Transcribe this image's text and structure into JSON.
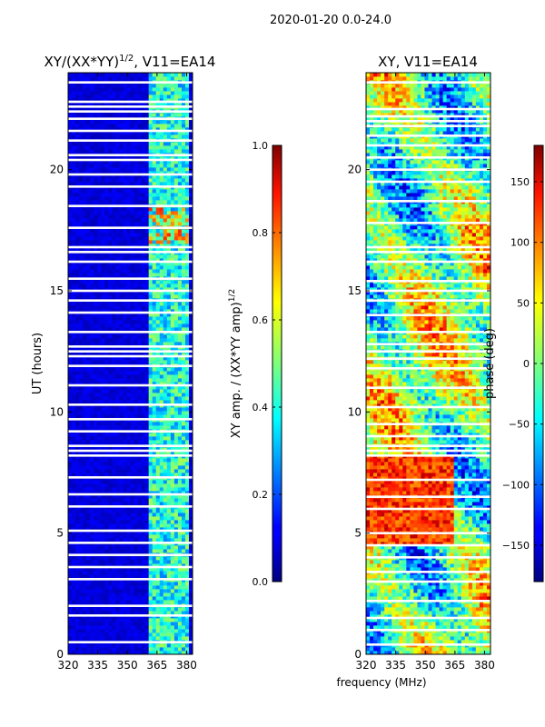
{
  "suptitle": "2020-01-20 0.0-24.0",
  "chart_data": [
    {
      "type": "heatmap",
      "title_main": "XY/(XX*YY)",
      "title_sup": "1/2",
      "title_rest": ", V11=EA14",
      "ylabel": "UT (hours)",
      "xlabel": "",
      "xlim": [
        320,
        383
      ],
      "ylim": [
        0,
        24
      ],
      "xticks": [
        320,
        335,
        350,
        365,
        380
      ],
      "yticks": [
        0,
        5,
        10,
        15,
        20
      ],
      "colorbar": {
        "label_main": "XY amp. / (XX*YY amp)",
        "label_sup": "1/2",
        "range": [
          0.0,
          1.0
        ],
        "ticks": [
          "0.0",
          "0.2",
          "0.4",
          "0.6",
          "0.8",
          "1.0"
        ],
        "tick_values": [
          0.0,
          0.2,
          0.4,
          0.6,
          0.8,
          1.0
        ],
        "colormap": "jet"
      },
      "bright_band_mhz": [
        361,
        382
      ],
      "flagged_hours": [
        0.5,
        1.6,
        2.0,
        3.1,
        3.6,
        4.1,
        4.6,
        5.1,
        6.1,
        6.6,
        7.3,
        8.2,
        8.4,
        8.6,
        9.2,
        9.7,
        10.3,
        11.1,
        11.9,
        12.3,
        12.5,
        12.7,
        13.3,
        14.1,
        14.6,
        15.0,
        15.5,
        16.2,
        16.6,
        16.8,
        17.6,
        18.5,
        19.3,
        19.8,
        20.4,
        20.6,
        21.2,
        21.6,
        22.1,
        22.4,
        22.6,
        22.8,
        23.6
      ]
    },
    {
      "type": "heatmap",
      "title": "XY, V11=EA14",
      "xlabel": "frequency (MHz)",
      "xlim": [
        320,
        383
      ],
      "ylim": [
        0,
        24
      ],
      "xticks": [
        320,
        335,
        350,
        365,
        380
      ],
      "yticks": [
        0,
        5,
        10,
        15,
        20
      ],
      "colorbar": {
        "label": "phase (deg)",
        "range": [
          -180,
          180
        ],
        "ticks": [
          "−150",
          "−100",
          "−50",
          "0",
          "50",
          "100",
          "150"
        ],
        "tick_values": [
          -150,
          -100,
          -50,
          0,
          50,
          100,
          150
        ],
        "colormap": "jet"
      },
      "flagged_hours": [
        0.4,
        1.0,
        1.5,
        2.2,
        3.0,
        3.4,
        4.0,
        4.5,
        5.0,
        6.0,
        6.5,
        7.2,
        8.2,
        8.4,
        8.6,
        9.0,
        9.5,
        10.2,
        11.0,
        11.8,
        12.2,
        12.5,
        12.8,
        13.3,
        14.0,
        14.6,
        15.0,
        15.4,
        16.2,
        16.6,
        16.8,
        17.8,
        18.7,
        19.5,
        20.0,
        20.5,
        21.0,
        21.4,
        21.8,
        22.0,
        22.2,
        22.5,
        23.6
      ]
    }
  ]
}
